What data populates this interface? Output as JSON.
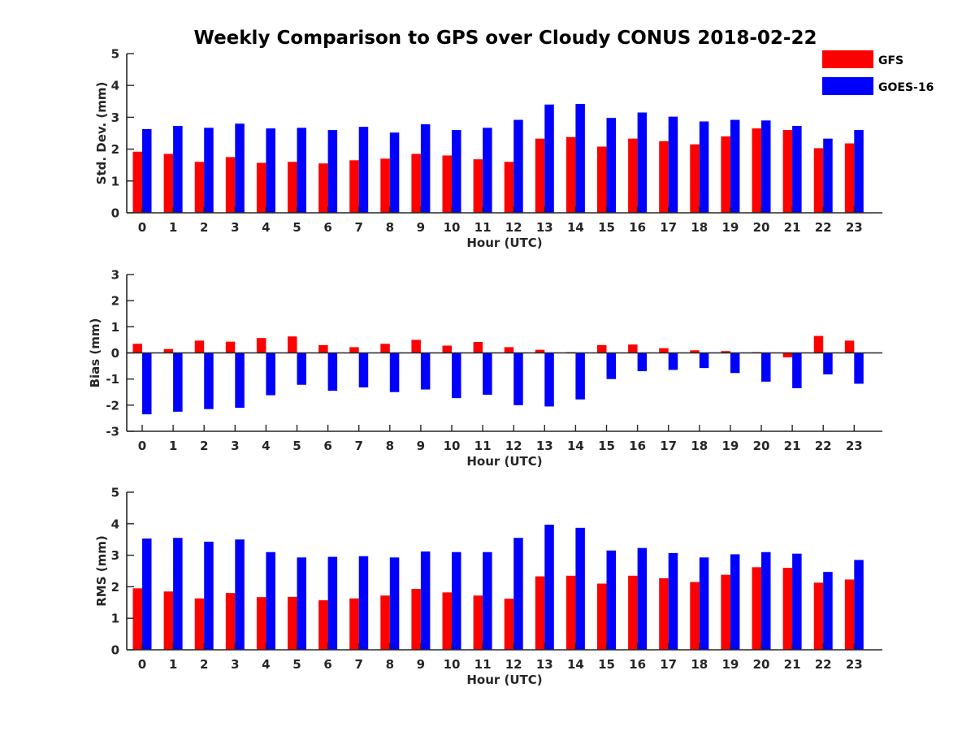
{
  "chart_data": {
    "type": "bar",
    "title": "Weekly Comparison to GPS over Cloudy CONUS 2018-02-22",
    "legend": {
      "placement": "top-right",
      "entries": [
        "GFS",
        "GOES-16"
      ]
    },
    "colors": {
      "GFS": "#ff0000",
      "GOES-16": "#0000ff",
      "axis": "#262626"
    },
    "panels": [
      {
        "id": "std",
        "xlabel": "Hour (UTC)",
        "ylabel": "Std. Dev. (mm)",
        "ylim": [
          0,
          5
        ],
        "yticks": [
          "0",
          "1",
          "2",
          "3",
          "4",
          "5"
        ],
        "grid": false,
        "categories": [
          "0",
          "1",
          "2",
          "3",
          "4",
          "5",
          "6",
          "7",
          "8",
          "9",
          "10",
          "11",
          "12",
          "13",
          "14",
          "15",
          "16",
          "17",
          "18",
          "19",
          "20",
          "21",
          "22",
          "23"
        ],
        "series": [
          {
            "name": "GFS",
            "values": [
              1.92,
              1.85,
              1.6,
              1.75,
              1.57,
              1.6,
              1.55,
              1.65,
              1.7,
              1.85,
              1.8,
              1.68,
              1.6,
              2.33,
              2.38,
              2.08,
              2.33,
              2.25,
              2.15,
              2.4,
              2.65,
              2.6,
              2.03,
              2.18
            ]
          },
          {
            "name": "GOES-16",
            "values": [
              2.63,
              2.73,
              2.67,
              2.8,
              2.65,
              2.67,
              2.6,
              2.7,
              2.52,
              2.78,
              2.6,
              2.67,
              2.92,
              3.4,
              3.42,
              2.98,
              3.15,
              3.02,
              2.87,
              2.92,
              2.9,
              2.73,
              2.33,
              2.6
            ]
          }
        ]
      },
      {
        "id": "bias",
        "xlabel": "Hour (UTC)",
        "ylabel": "Bias (mm)",
        "ylim": [
          -3,
          3
        ],
        "yticks": [
          "-3",
          "-2",
          "-1",
          "0",
          "1",
          "2",
          "3"
        ],
        "grid": false,
        "zero_line": true,
        "categories": [
          "0",
          "1",
          "2",
          "3",
          "4",
          "5",
          "6",
          "7",
          "8",
          "9",
          "10",
          "11",
          "12",
          "13",
          "14",
          "15",
          "16",
          "17",
          "18",
          "19",
          "20",
          "21",
          "22",
          "23"
        ],
        "series": [
          {
            "name": "GFS",
            "values": [
              0.35,
              0.15,
              0.47,
              0.43,
              0.57,
              0.63,
              0.3,
              0.22,
              0.35,
              0.5,
              0.28,
              0.42,
              0.22,
              0.12,
              0.03,
              0.3,
              0.32,
              0.18,
              0.1,
              0.07,
              0.03,
              -0.17,
              0.65,
              0.47
            ]
          },
          {
            "name": "GOES-16",
            "values": [
              -2.35,
              -2.25,
              -2.15,
              -2.1,
              -1.62,
              -1.22,
              -1.45,
              -1.32,
              -1.5,
              -1.4,
              -1.73,
              -1.6,
              -2.0,
              -2.05,
              -1.78,
              -1.0,
              -0.7,
              -0.65,
              -0.58,
              -0.77,
              -1.1,
              -1.35,
              -0.82,
              -1.18
            ]
          }
        ]
      },
      {
        "id": "rms",
        "xlabel": "Hour (UTC)",
        "ylabel": "RMS (mm)",
        "ylim": [
          0,
          5
        ],
        "yticks": [
          "0",
          "1",
          "2",
          "3",
          "4",
          "5"
        ],
        "grid": false,
        "categories": [
          "0",
          "1",
          "2",
          "3",
          "4",
          "5",
          "6",
          "7",
          "8",
          "9",
          "10",
          "11",
          "12",
          "13",
          "14",
          "15",
          "16",
          "17",
          "18",
          "19",
          "20",
          "21",
          "22",
          "23"
        ],
        "series": [
          {
            "name": "GFS",
            "values": [
              1.95,
              1.85,
              1.63,
              1.8,
              1.67,
              1.68,
              1.57,
              1.63,
              1.72,
              1.93,
              1.82,
              1.72,
              1.62,
              2.33,
              2.35,
              2.1,
              2.35,
              2.27,
              2.15,
              2.38,
              2.62,
              2.6,
              2.13,
              2.23
            ]
          },
          {
            "name": "GOES-16",
            "values": [
              3.53,
              3.55,
              3.43,
              3.5,
              3.1,
              2.93,
              2.95,
              2.97,
              2.93,
              3.12,
              3.1,
              3.1,
              3.55,
              3.97,
              3.87,
              3.15,
              3.23,
              3.07,
              2.93,
              3.03,
              3.1,
              3.05,
              2.47,
              2.85
            ]
          }
        ]
      }
    ]
  }
}
